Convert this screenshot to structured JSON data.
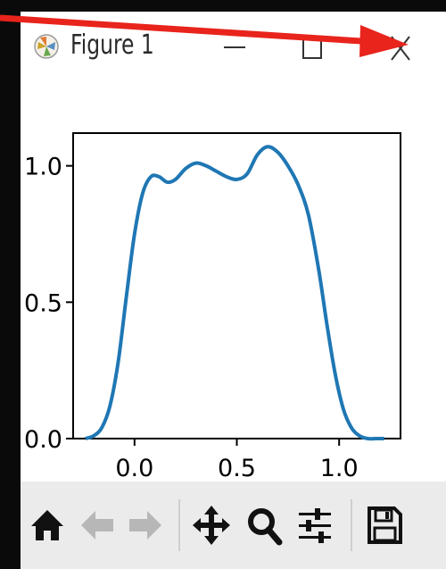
{
  "window": {
    "title": "Figure 1"
  },
  "controls": {
    "minimize_label": "–",
    "maximize_label": "□",
    "close_label": "X"
  },
  "chart_data": {
    "type": "line",
    "title": "",
    "xlabel": "",
    "ylabel": "",
    "xlim": [
      -0.3,
      1.3
    ],
    "ylim": [
      0.0,
      1.12
    ],
    "x_ticks": [
      "0.0",
      "0.5",
      "1.0"
    ],
    "y_ticks": [
      "0.0",
      "0.5",
      "1.0"
    ],
    "grid": false,
    "series": [
      {
        "color": "#1f77b4",
        "x": [
          -0.24,
          -0.2,
          -0.16,
          -0.12,
          -0.08,
          -0.04,
          0.0,
          0.04,
          0.08,
          0.12,
          0.16,
          0.2,
          0.25,
          0.3,
          0.35,
          0.4,
          0.45,
          0.5,
          0.55,
          0.6,
          0.65,
          0.7,
          0.75,
          0.8,
          0.85,
          0.9,
          0.94,
          0.98,
          1.02,
          1.06,
          1.1,
          1.14,
          1.18,
          1.22
        ],
        "y": [
          0.0,
          0.01,
          0.04,
          0.12,
          0.28,
          0.52,
          0.75,
          0.9,
          0.96,
          0.96,
          0.94,
          0.95,
          0.99,
          1.01,
          1.0,
          0.98,
          0.96,
          0.95,
          0.97,
          1.04,
          1.07,
          1.05,
          1.0,
          0.93,
          0.82,
          0.62,
          0.42,
          0.24,
          0.11,
          0.04,
          0.01,
          0.0,
          0.0,
          0.0
        ]
      }
    ]
  },
  "toolbar": {
    "icons": [
      "home-icon",
      "back-arrow-icon",
      "forward-arrow-icon",
      "pan-icon",
      "zoom-icon",
      "configure-subplots-icon",
      "save-icon"
    ]
  },
  "annotation": {
    "arrow_color": "#e8241c"
  }
}
